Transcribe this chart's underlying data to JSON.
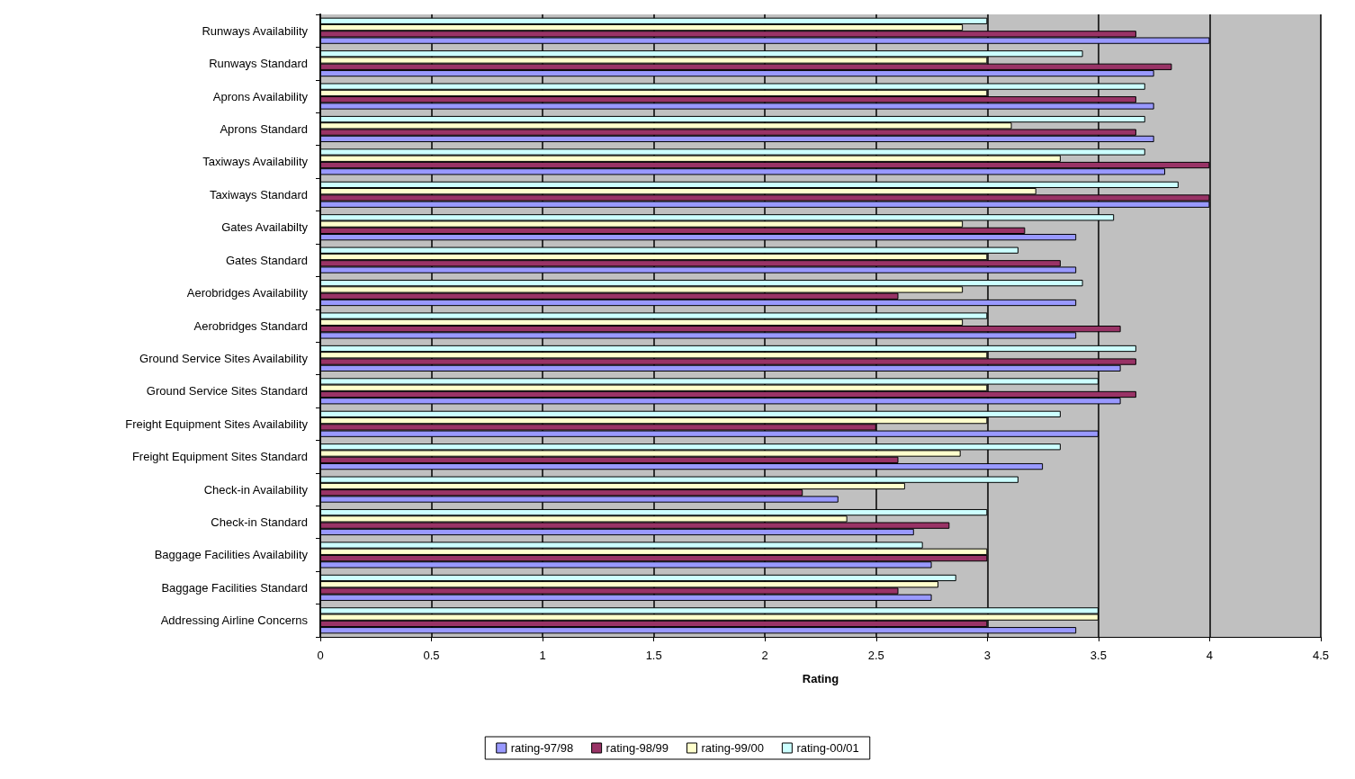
{
  "chart_data": {
    "type": "bar",
    "orientation": "horizontal",
    "xlabel": "Rating",
    "categories": [
      "Runways Availability",
      "Runways Standard",
      "Aprons Availability",
      "Aprons Standard",
      "Taxiways Availability",
      "Taxiways Standard",
      "Gates Availabilty",
      "Gates Standard",
      "Aerobridges Availability",
      "Aerobridges Standard",
      "Ground Service Sites Availability",
      "Ground Service Sites Standard",
      "Freight Equipment Sites Availability",
      "Freight Equipment Sites Standard",
      "Check-in Availability",
      "Check-in Standard",
      "Baggage Facilities Availability",
      "Baggage Facilities Standard",
      "Addressing Airline Concerns"
    ],
    "series": [
      {
        "name": "rating-97/98",
        "color": "#9999ff",
        "values": [
          4.0,
          3.75,
          3.75,
          3.75,
          3.8,
          4.0,
          3.4,
          3.4,
          3.4,
          3.4,
          3.6,
          3.6,
          3.5,
          3.25,
          2.33,
          2.67,
          2.75,
          2.75,
          3.4
        ]
      },
      {
        "name": "rating-98/99",
        "color": "#993366",
        "values": [
          3.67,
          3.83,
          3.67,
          3.67,
          4.0,
          4.0,
          3.17,
          3.33,
          2.6,
          3.6,
          3.67,
          3.67,
          2.5,
          2.6,
          2.17,
          2.83,
          3.0,
          2.6,
          3.0
        ]
      },
      {
        "name": "rating-99/00",
        "color": "#ffffcc",
        "values": [
          2.89,
          3.0,
          3.0,
          3.11,
          3.33,
          3.22,
          2.89,
          3.0,
          2.89,
          2.89,
          3.0,
          3.0,
          3.0,
          2.88,
          2.63,
          2.37,
          3.0,
          2.78,
          3.5
        ]
      },
      {
        "name": "rating-00/01",
        "color": "#ccffff",
        "values": [
          3.0,
          3.43,
          3.71,
          3.71,
          3.71,
          3.86,
          3.57,
          3.14,
          3.43,
          3.0,
          3.67,
          3.5,
          3.33,
          3.33,
          3.14,
          3.0,
          2.71,
          2.86,
          3.5
        ]
      }
    ],
    "xlim": [
      0,
      4.5
    ],
    "xticks": [
      0,
      0.5,
      1,
      1.5,
      2,
      2.5,
      3,
      3.5,
      4,
      4.5
    ],
    "grid": "x",
    "legend": "bottom"
  }
}
